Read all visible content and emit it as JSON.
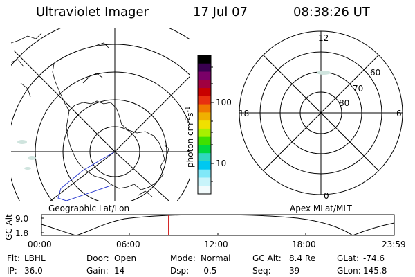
{
  "header": {
    "title": "Ultraviolet Imager",
    "date": "17 Jul 07",
    "time": "08:38:26 UT"
  },
  "left_map": {
    "label": "Geographic Lat/Lon"
  },
  "right_map": {
    "label": "Apex MLat/MLT",
    "mlt_labels": {
      "top": "12",
      "right": "6",
      "bottom": "0",
      "left": "18"
    },
    "lat_labels": [
      "60",
      "70",
      "80"
    ]
  },
  "colorbar": {
    "unit_main": "photon cm",
    "unit_exp1": "-2",
    "unit_mid": "s",
    "unit_exp2": "-1",
    "ticks": [
      "100",
      "10"
    ],
    "colors": [
      "#000000",
      "#3a0050",
      "#7a0068",
      "#a00040",
      "#c80000",
      "#e83010",
      "#f07800",
      "#f0b000",
      "#f0e000",
      "#a8f000",
      "#40e000",
      "#00d840",
      "#30d8c0",
      "#00c8f0",
      "#80e8f8",
      "#c8f4fa",
      "#f2fbfc"
    ]
  },
  "timeline": {
    "ylabel": "GC Alt",
    "y_ticks": [
      "9.0",
      "1.8"
    ],
    "x_ticks": [
      "00:00",
      "06:00",
      "12:00",
      "18:00",
      "23:59"
    ],
    "marker_time_hours": 8.64
  },
  "footer": [
    [
      {
        "label": "Flt:",
        "value": "LBHL"
      },
      {
        "label": "Door:",
        "value": "Open"
      },
      {
        "label": "Mode:",
        "value": "Normal"
      },
      {
        "label": "GC Alt:",
        "value": "8.4 Re"
      },
      {
        "label": "GLat:",
        "value": "-74.6"
      }
    ],
    [
      {
        "label": "IP:",
        "value": "36.0"
      },
      {
        "label": "Gain:",
        "value": "14"
      },
      {
        "label": "Dsp:",
        "value": "-0.5"
      },
      {
        "label": "Seq:",
        "value": "39"
      },
      {
        "label": "GLon:",
        "value": "145.8"
      }
    ]
  ]
}
